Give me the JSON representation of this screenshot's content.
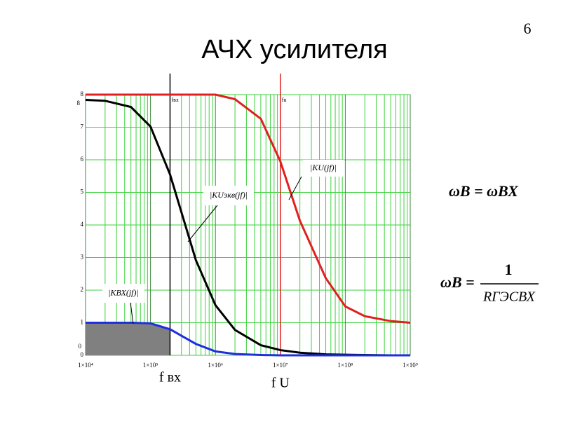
{
  "page_number": "6",
  "formulas": {
    "first": "ωВ = ωВХ",
    "second_lhs": "ωВ =",
    "second_num": "1",
    "second_den": "RГЭCВХ"
  },
  "chart_data": {
    "type": "line",
    "title": "АЧХ усилителя",
    "log_x": true,
    "grid": true,
    "x": [
      10000,
      20000,
      50000,
      100000,
      200000,
      500000,
      1000000,
      2000000,
      5000000,
      10000000,
      20000000,
      50000000,
      100000000,
      200000000,
      500000000,
      1000000000
    ],
    "series": [
      {
        "name": "|KU(jf)|",
        "color": "#e02020",
        "values": [
          8,
          8,
          8,
          8,
          8,
          8,
          8,
          7.86,
          7.26,
          5.95,
          4.13,
          2.37,
          1.5,
          1.2,
          1.05,
          1
        ]
      },
      {
        "name": "|KUэкв(jf)|",
        "color": "#000000",
        "values": [
          7.84,
          7.81,
          7.62,
          7.02,
          5.55,
          2.92,
          1.54,
          0.78,
          0.31,
          0.16,
          0.08,
          0.03,
          0.02,
          0.01,
          0,
          0
        ]
      },
      {
        "name": "|KВХ(jf)|",
        "color": "#1e2ee0",
        "values": [
          1,
          1,
          1,
          0.98,
          0.8,
          0.35,
          0.12,
          0.04,
          0.01,
          0,
          0,
          0,
          0,
          0,
          0,
          0
        ]
      }
    ],
    "xlim": [
      10000,
      1000000000
    ],
    "xticks": [
      {
        "value": 10000,
        "label": "1×10⁴"
      },
      {
        "value": 100000,
        "label": "1×10⁵"
      },
      {
        "value": 1000000,
        "label": "1×10⁶"
      },
      {
        "value": 10000000,
        "label": "1×10⁷"
      },
      {
        "value": 100000000,
        "label": "1×10⁸"
      },
      {
        "value": 1000000000,
        "label": "1×10⁹"
      }
    ],
    "ylim": [
      0,
      8
    ],
    "yticks": [
      0,
      1,
      2,
      3,
      4,
      5,
      6,
      7,
      8
    ],
    "y_top_label": "8",
    "y_bottom_label": "0",
    "markers": [
      {
        "x": 200000,
        "color": "#000000",
        "label": "fвх",
        "caption": "f вх"
      },
      {
        "x": 10000000,
        "color": "#e02020",
        "label": "fu",
        "caption": "f U"
      }
    ]
  }
}
